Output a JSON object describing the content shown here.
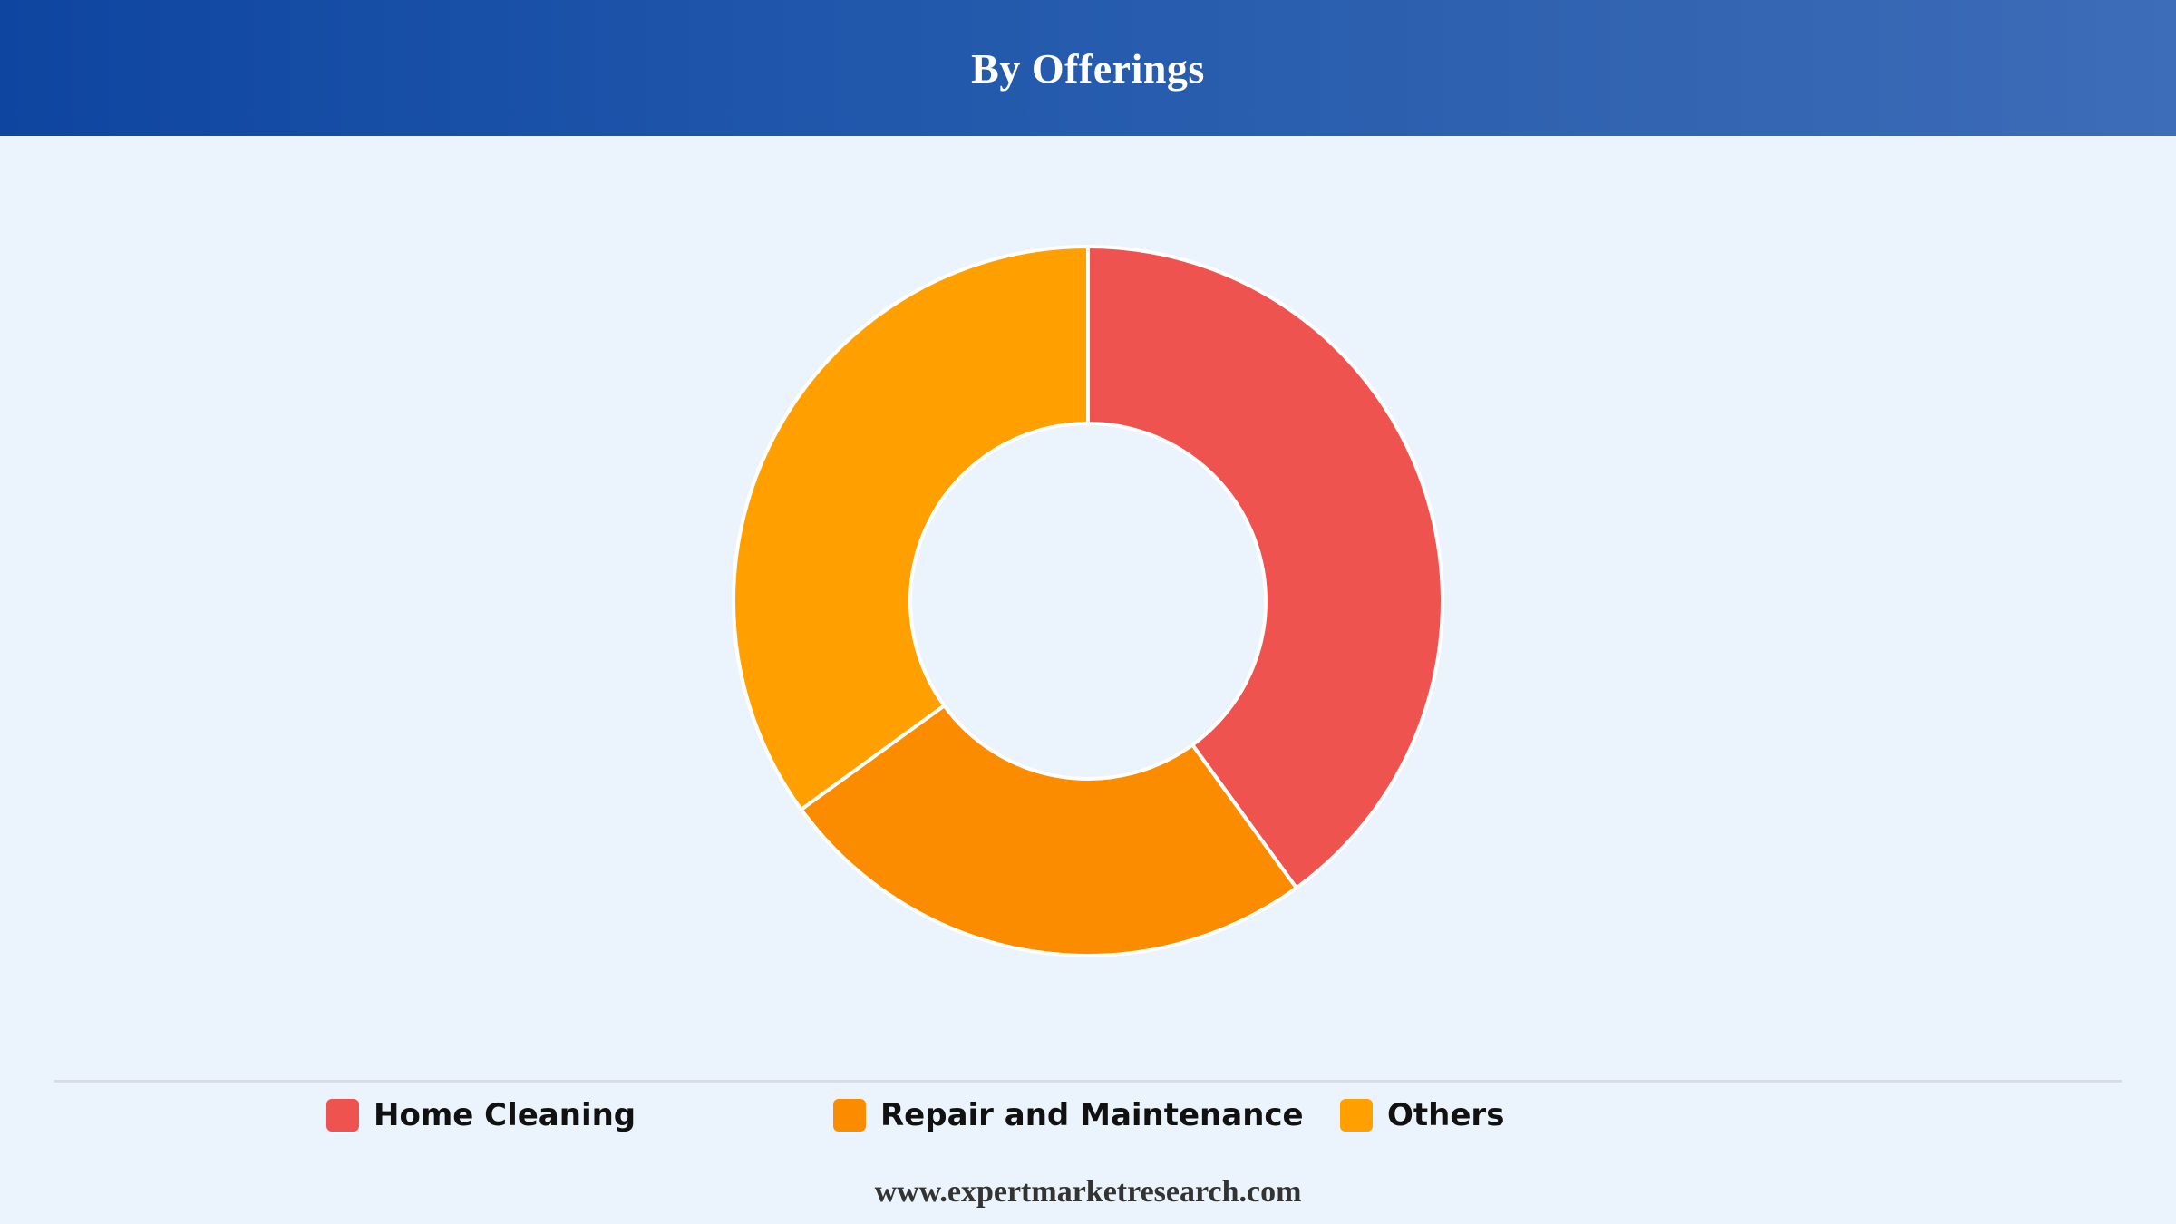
{
  "header": {
    "title": "By Offerings"
  },
  "chart_data": {
    "type": "pie",
    "donut": true,
    "title": "By Offerings",
    "categories": [
      "Home Cleaning",
      "Repair and Maintenance",
      "Others"
    ],
    "values": [
      40,
      25,
      35
    ],
    "unit": "%",
    "colors": [
      "#ef5350",
      "#fb8c00",
      "#ffa000"
    ],
    "start_angle_deg": 0,
    "direction": "clockwise",
    "legend_position": "bottom",
    "slice_border_color": "#ffffff"
  },
  "legend": {
    "items": [
      {
        "label": "Home Cleaning",
        "color": "#ef5350"
      },
      {
        "label": "Repair and Maintenance",
        "color": "#fb8c00"
      },
      {
        "label": "Others",
        "color": "#ffa000"
      }
    ]
  },
  "footer": {
    "source": "www.expertmarketresearch.com"
  }
}
